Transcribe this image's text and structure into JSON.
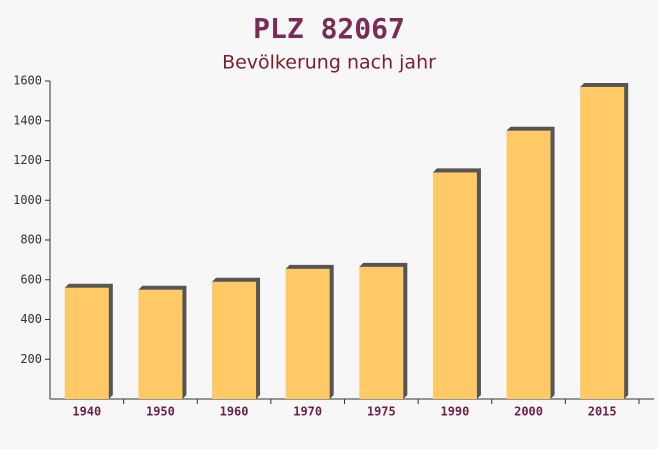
{
  "chart_data": {
    "type": "bar",
    "title": "PLZ 82067",
    "subtitle": "Bevölkerung nach jahr",
    "categories": [
      "1940",
      "1950",
      "1960",
      "1970",
      "1975",
      "1990",
      "2000",
      "2015"
    ],
    "values": [
      560,
      550,
      590,
      655,
      665,
      1140,
      1350,
      1570
    ],
    "color": "#ffc966",
    "ylim": [
      0,
      1600
    ],
    "yticks": [
      200,
      400,
      600,
      800,
      1000,
      1200,
      1400,
      1600
    ],
    "grid": false
  }
}
